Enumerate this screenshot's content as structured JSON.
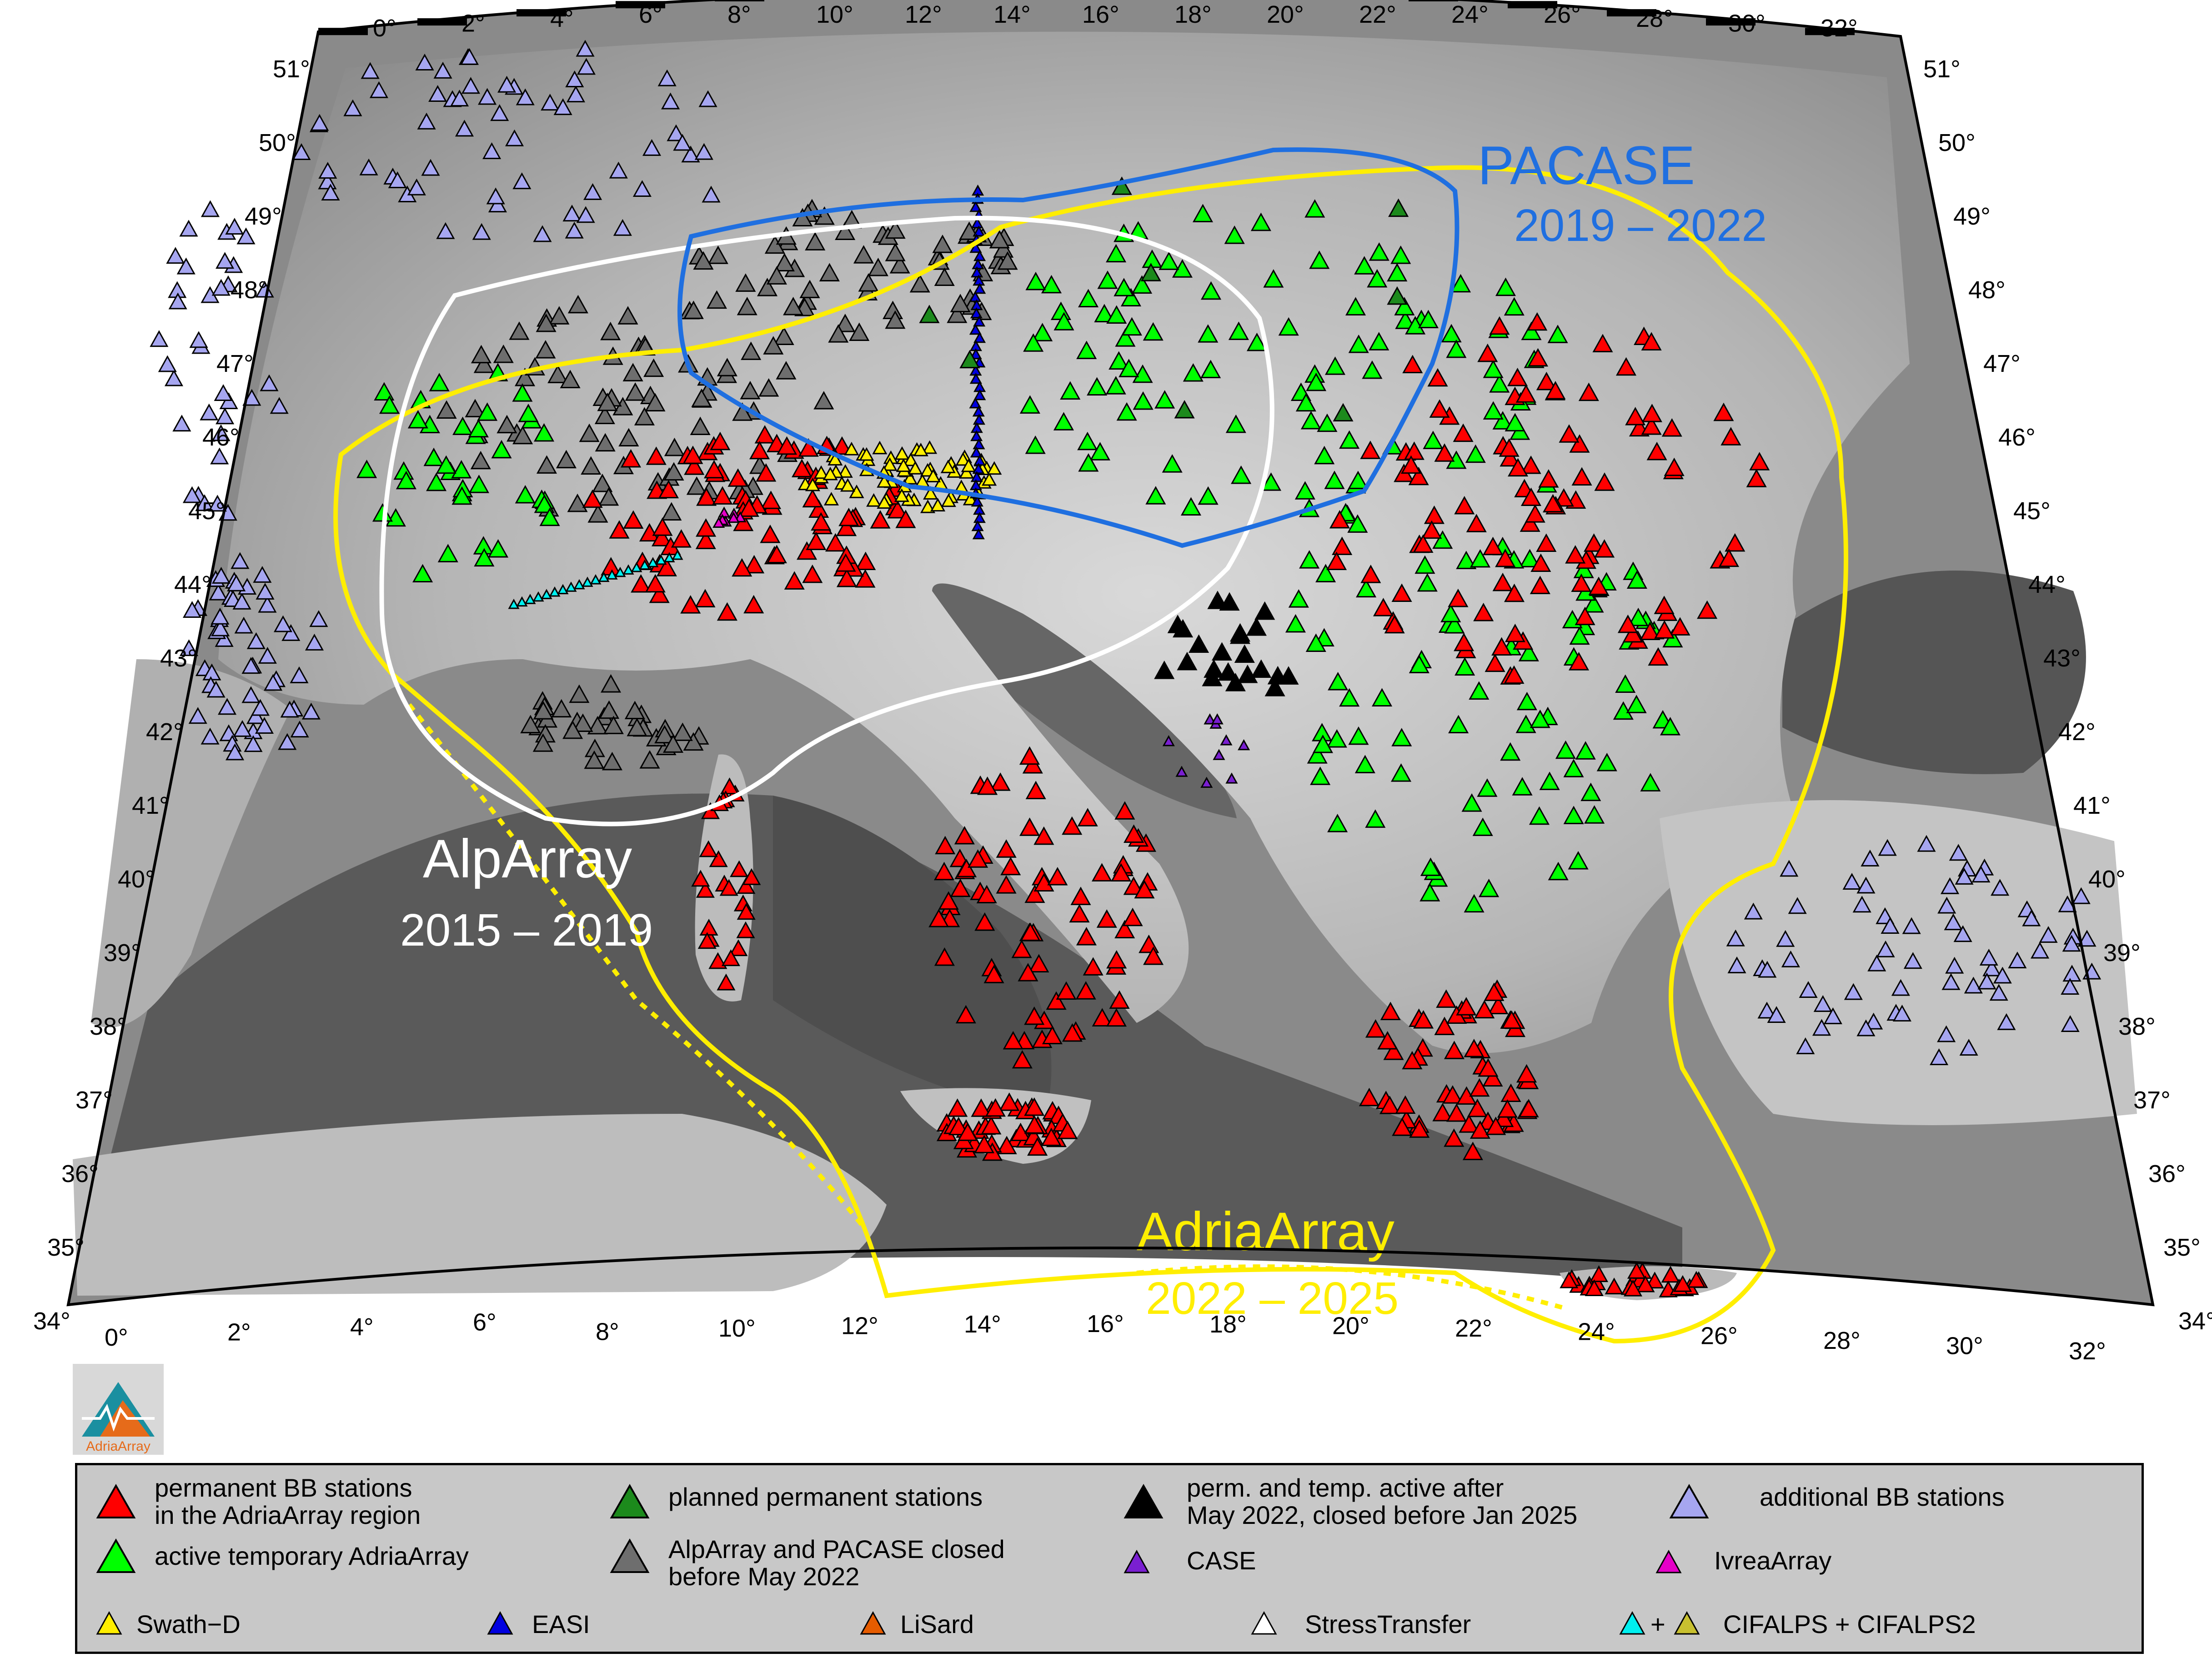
{
  "map": {
    "lon_ticks_top": [
      "0°",
      "2°",
      "4°",
      "6°",
      "8°",
      "10°",
      "12°",
      "14°",
      "16°",
      "18°",
      "20°",
      "22°",
      "24°",
      "26°",
      "28°",
      "30°",
      "32°"
    ],
    "lon_ticks_bottom": [
      "0°",
      "2°",
      "4°",
      "6°",
      "8°",
      "10°",
      "12°",
      "14°",
      "16°",
      "18°",
      "20°",
      "22°",
      "24°",
      "26°",
      "28°",
      "30°",
      "32°"
    ],
    "lat_ticks_left": [
      "51°",
      "50°",
      "49°",
      "48°",
      "47°",
      "46°",
      "45°",
      "44°",
      "43°",
      "42°",
      "41°",
      "40°",
      "39°",
      "38°",
      "37°",
      "36°",
      "35°",
      "34°"
    ],
    "lat_ticks_right": [
      "51°",
      "50°",
      "49°",
      "48°",
      "47°",
      "46°",
      "45°",
      "44°",
      "43°",
      "42°",
      "41°",
      "40°",
      "39°",
      "38°",
      "37°",
      "36°",
      "35°",
      "34°"
    ],
    "labels": {
      "pacase_name": "PACASE",
      "pacase_years": "2019 – 2022",
      "alparray_name": "AlpArray",
      "alparray_years": "2015 – 2019",
      "adriaarray_name": "AdriaArray",
      "adriaarray_years": "2022 – 2025"
    },
    "colors": {
      "pacase": "#1f6fe0",
      "alparray": "#ffffff",
      "adriaarray": "#ffee00",
      "permanent": "#ff0000",
      "temporary": "#00ff00",
      "planned": "#1c8a1c",
      "closed": "#6e6e6e",
      "perm_temp_closed": "#000000",
      "additional": "#a6a6f0",
      "case": "#7a1fd1",
      "ivrea": "#e600c8",
      "swath": "#ffee00",
      "easi": "#0000e0",
      "lisard": "#e65c00",
      "stresstransfer": "#ffffff",
      "cifalps": "#00f0f0",
      "cifalps2": "#c8c030"
    }
  },
  "logo": {
    "text": "AdriaArray"
  },
  "legend": {
    "permanent": "permanent BB stations\nin the AdriaArray region",
    "planned": "planned permanent stations",
    "perm_temp": "perm. and temp. active after\nMay 2022, closed before Jan 2025",
    "additional": "additional BB stations",
    "temporary": "active temporary AdriaArray",
    "closed": "AlpArray and PACASE closed\nbefore May 2022",
    "case": "CASE",
    "ivrea": "IvreaArray",
    "swath": "Swath−D",
    "easi": "EASI",
    "lisard": "LiSard",
    "stresstransfer": "StressTransfer",
    "cifalps_plus": "+",
    "cifalps": "CIFALPS + CIFALPS2"
  }
}
